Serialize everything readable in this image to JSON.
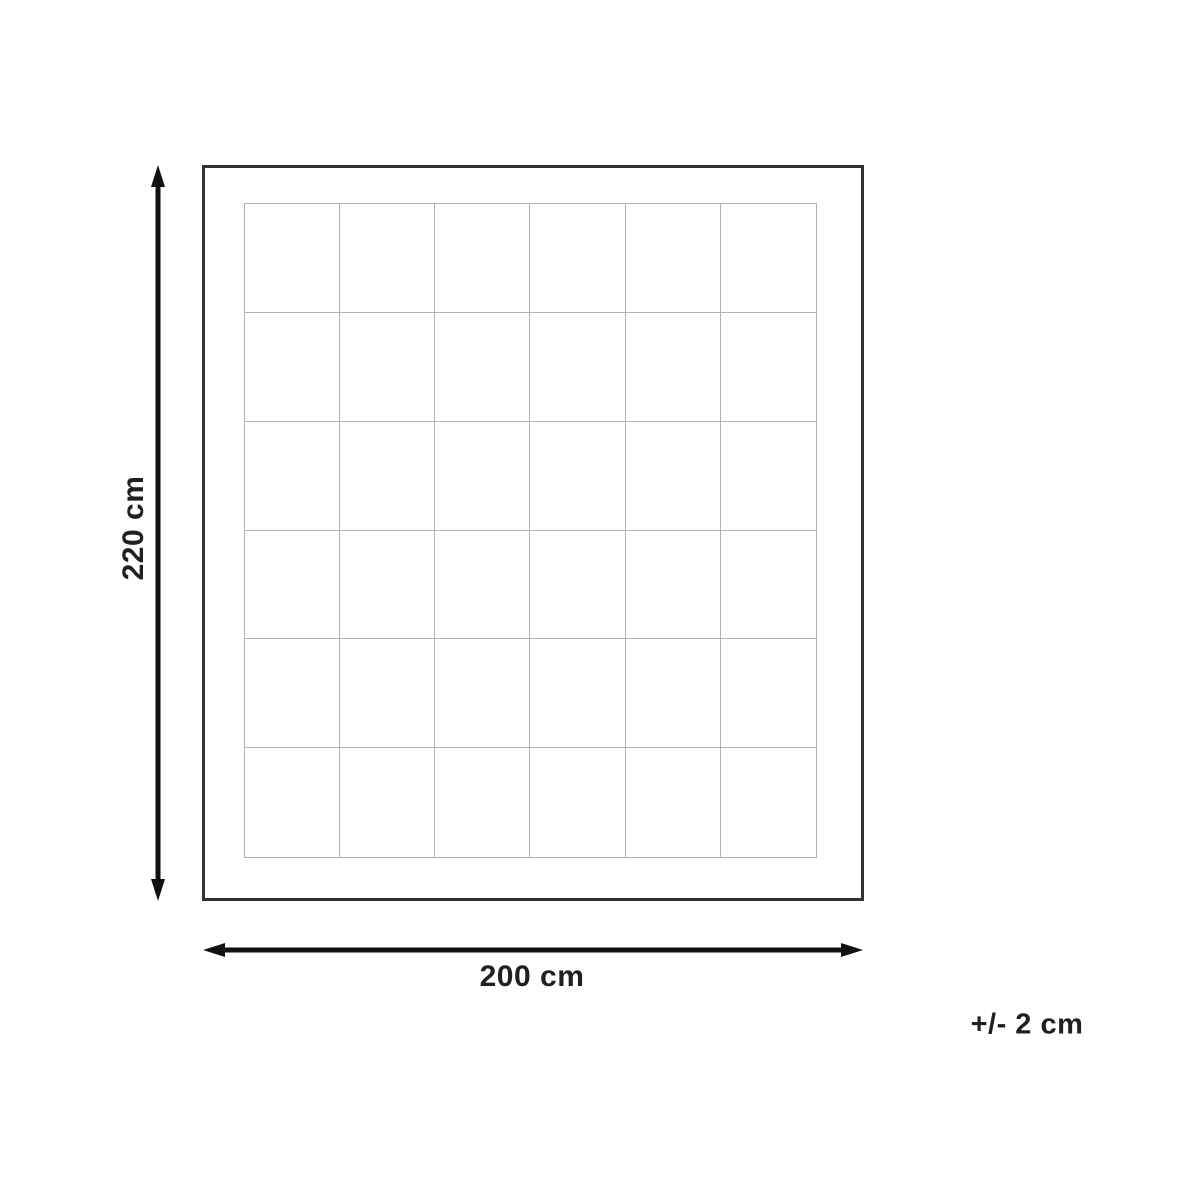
{
  "diagram": {
    "kind": "product-dimension-diagram",
    "height_label": "220 cm",
    "width_label": "200 cm",
    "tolerance_label": "+/- 2 cm",
    "grid_rows": 6,
    "grid_cols": 6,
    "colors": {
      "outline": "#333333",
      "grid_line": "#b3b3b3",
      "arrow": "#111111",
      "text": "#231f20",
      "background": "#ffffff"
    }
  }
}
